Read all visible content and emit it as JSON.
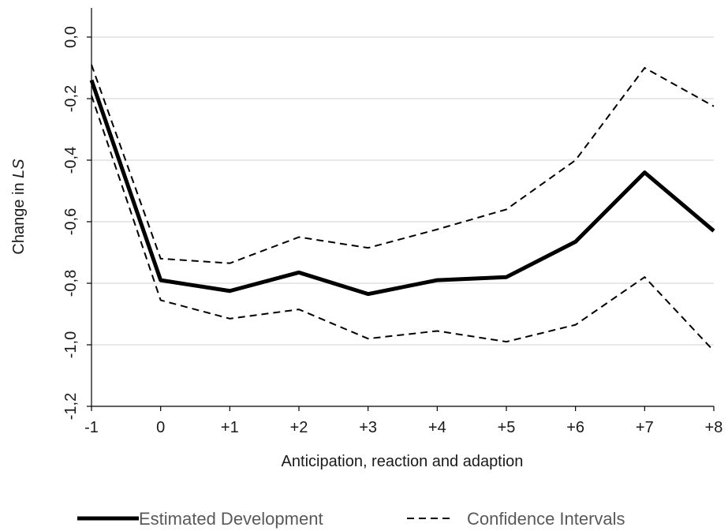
{
  "chart_data": {
    "type": "line",
    "xlabel": "Anticipation, reaction and adaption",
    "ylabel": {
      "prefix": "Change in ",
      "italic": "LS"
    },
    "categories": [
      "-1",
      "0",
      "+1",
      "+2",
      "+3",
      "+4",
      "+5",
      "+6",
      "+7",
      "+8"
    ],
    "y_ticks": [
      0.0,
      -0.2,
      -0.4,
      -0.6,
      -0.8,
      -1.0,
      -1.2
    ],
    "y_tick_labels": [
      "0,0",
      "-0,2",
      "-0,4",
      "-0,6",
      "-0,8",
      "-1,0",
      "-1,2"
    ],
    "ylim": [
      -1.2,
      0.1
    ],
    "grid": true,
    "legend_position": "bottom",
    "series": [
      {
        "name": "Estimated Development",
        "style": "solid",
        "color": "#000000",
        "values": [
          -0.14,
          -0.79,
          -0.825,
          -0.765,
          -0.835,
          -0.79,
          -0.78,
          -0.665,
          -0.44,
          -0.63
        ]
      },
      {
        "name": "Confidence Intervals",
        "style": "dashed",
        "color": "#000000",
        "upper": [
          -0.09,
          -0.72,
          -0.735,
          -0.65,
          -0.685,
          -0.625,
          -0.56,
          -0.4,
          -0.1,
          -0.225
        ],
        "lower": [
          -0.19,
          -0.855,
          -0.915,
          -0.885,
          -0.98,
          -0.955,
          -0.99,
          -0.935,
          -0.78,
          -1.02
        ]
      }
    ]
  }
}
